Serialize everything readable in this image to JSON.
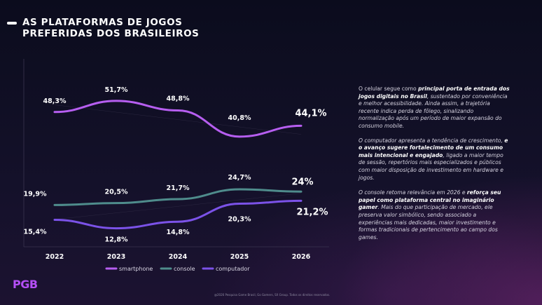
{
  "header": {
    "title_line1": "AS PLATAFORMAS DE JOGOS",
    "title_line2": "PREFERIDAS DOS BRASILEIROS"
  },
  "colors": {
    "smartphone": "#b65ef0",
    "console": "#4f8c8c",
    "computador": "#7b52e8",
    "grid": "#3a3550",
    "text": "#ffffff"
  },
  "chart_data": {
    "type": "line",
    "title": "AS PLATAFORMAS DE JOGOS PREFERIDAS DOS BRASILEIROS",
    "xlabel": "",
    "ylabel": "",
    "ylim": [
      8,
      56
    ],
    "grid": false,
    "legend_position": "bottom-center",
    "categories": [
      "2022",
      "2023",
      "2024",
      "2025",
      "2026"
    ],
    "series": [
      {
        "name": "smartphone",
        "values": [
          48.3,
          51.7,
          48.8,
          40.8,
          44.1
        ],
        "labels": [
          "48,3%",
          "51,7%",
          "48,8%",
          "40,8%",
          "44,1%"
        ]
      },
      {
        "name": "console",
        "values": [
          19.9,
          20.5,
          21.7,
          24.7,
          24.0
        ],
        "labels": [
          "19,9%",
          "20,5%",
          "21,7%",
          "24,7%",
          "24%"
        ]
      },
      {
        "name": "computador",
        "values": [
          15.4,
          12.8,
          14.8,
          20.3,
          21.2
        ],
        "labels": [
          "15,4%",
          "12,8%",
          "14,8%",
          "20,3%",
          "21,2%"
        ]
      }
    ]
  },
  "commentary": {
    "p1_a": "O celular segue como ",
    "p1_b": "principal porta de entrada dos jogos digitais no Brasil",
    "p1_c": ", sustentado por conveniência e melhor acessibilidade. Ainda assim, a trajetória recente indica perda de fôlego, sinalizando normalização após um período de maior expansão do consumo mobile.",
    "p2_a": "O computador apresenta a tendência de crescimento, ",
    "p2_b": "e o avanço sugere fortalecimento de um consumo mais intencional e engajado",
    "p2_c": ", ligado a maior tempo de sessão, repertórios mais especializados e públicos com maior disposição de investimento em hardware e jogos.",
    "p3_a": "O console retoma relevância em 2026 e ",
    "p3_b": "reforça seu papel como plataforma central no imaginário gamer",
    "p3_c": ". Mais do que participação de mercado, ele preserva valor simbólico, sendo associado a experiências mais dedicadas, maior investimento e formas tradicionais de pertencimento ao campo dos games."
  },
  "logo": {
    "text": "PGB"
  },
  "footer": {
    "note": "@2026 Pesquisa Game Brasil, Go Gamers, SX Group. Todos os direitos reservados."
  }
}
